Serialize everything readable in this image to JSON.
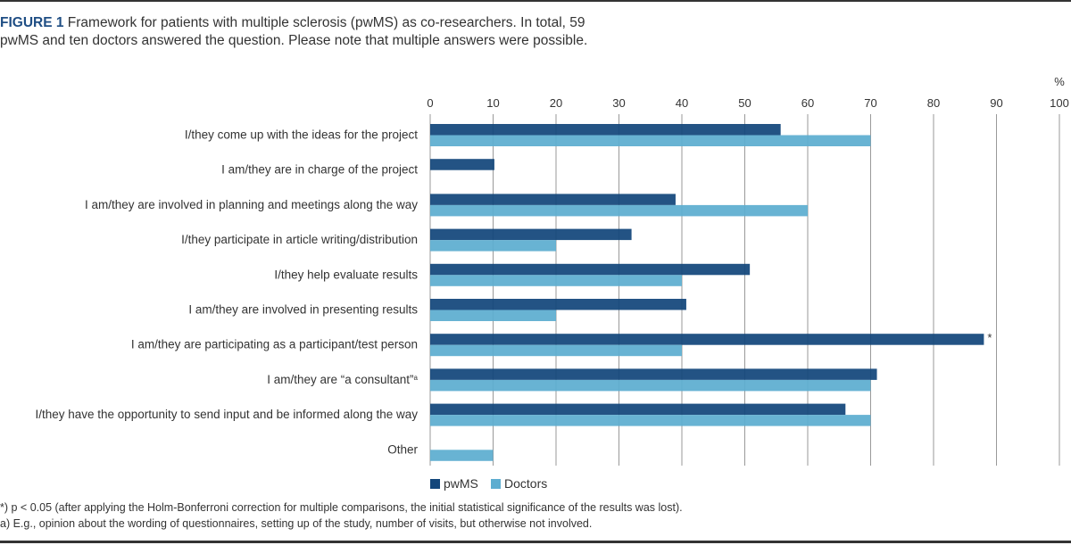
{
  "caption": {
    "figure_label": "FIGURE 1",
    "text": "Framework for patients with multiple sclerosis (pwMS) as co-researchers. In total, 59 pwMS and ten doctors answered the question. Please note that multiple answers were possible."
  },
  "chart_data": {
    "type": "bar",
    "orientation": "horizontal",
    "title": "Framework for patients with multiple sclerosis (pwMS) as co-researchers",
    "xlabel": "%",
    "ylabel": "",
    "xlim": [
      0,
      100
    ],
    "x_ticks": [
      0,
      10,
      20,
      30,
      40,
      50,
      60,
      70,
      80,
      90,
      100
    ],
    "grid": true,
    "legend_position": "bottom-left",
    "categories": [
      "I/they come up with the ideas for the project",
      "I am/they are in charge of the project",
      "I am/they are involved in planning and meetings along the way",
      "I/they participate in article writing/distribution",
      "I/they help evaluate results",
      "I am/they are involved in presenting results",
      "I am/they are participating as a participant/test person",
      "I am/they are “a consultant”",
      "I/they have the opportunity to send input and be informed along the way",
      "Other"
    ],
    "category_superscripts": [
      "",
      "",
      "",
      "",
      "",
      "",
      "",
      "a",
      "",
      ""
    ],
    "series": [
      {
        "name": "pwMS",
        "color": "#12467b",
        "values": [
          55.7,
          10.2,
          39,
          32,
          50.8,
          40.7,
          88,
          71,
          66,
          0
        ]
      },
      {
        "name": "Doctors",
        "color": "#5dadd0",
        "values": [
          70,
          0,
          60,
          20,
          40,
          20,
          40,
          70,
          70,
          10
        ]
      }
    ],
    "annotations": [
      {
        "category_index": 6,
        "series": "pwMS",
        "text": "*"
      }
    ]
  },
  "footnotes": [
    "*) p < 0.05 (after applying the Holm-Bonferroni correction for multiple comparisons, the initial statistical significance of the results was lost).",
    "a) E.g., opinion about the wording of questionnaires, setting up of the study, number of visits, but otherwise not involved."
  ],
  "colors": {
    "grid": "#999999",
    "caption_accent": "#1f4e84",
    "text": "#333333"
  }
}
